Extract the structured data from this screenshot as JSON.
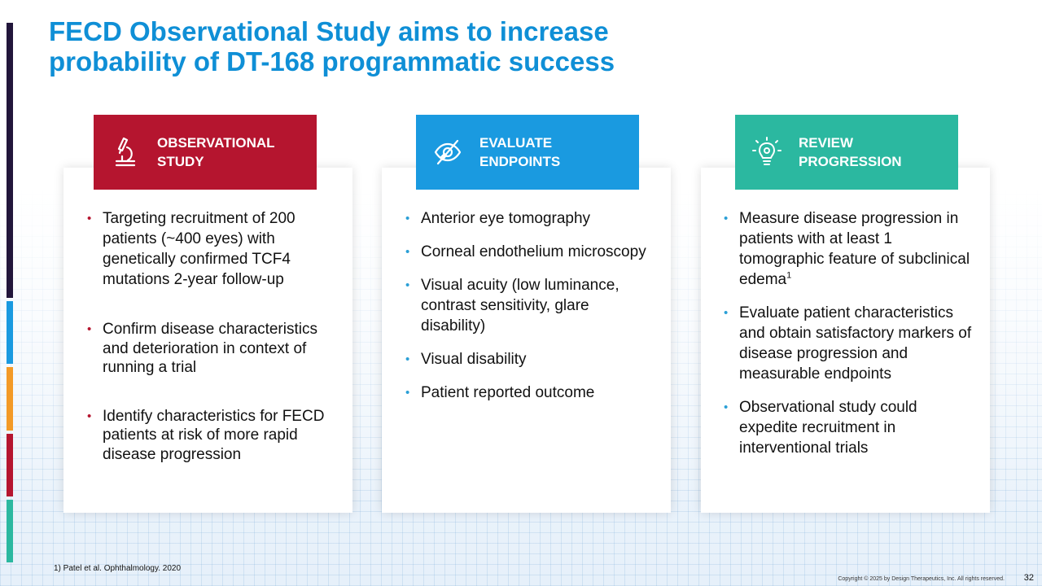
{
  "colors": {
    "title": "#0f8fd6",
    "card1_header": "#b5152f",
    "card2_header": "#1a9ae0",
    "card3_header": "#2bb8a0",
    "sidebar": [
      "#22163b",
      "#1a9ae0",
      "#f39a26",
      "#b5152f",
      "#2bb8a0"
    ]
  },
  "title": {
    "line1": "FECD Observational Study aims to increase",
    "line2": "probability of DT-168 programmatic success"
  },
  "cards": [
    {
      "icon": "microscope-icon",
      "heading": [
        "OBSERVATIONAL",
        "STUDY"
      ],
      "bullets": [
        "Targeting recruitment of 200 patients (~400 eyes) with genetically confirmed TCF4 mutations 2-year follow-up",
        "Confirm disease characteristics and deterioration in context of running a trial",
        "Identify characteristics for FECD patients at risk of more rapid disease progression"
      ]
    },
    {
      "icon": "eye-slash-icon",
      "heading": [
        "EVALUATE",
        "ENDPOINTS"
      ],
      "bullets": [
        "Anterior eye tomography",
        "Corneal endothelium microscopy",
        "Visual acuity (low luminance, contrast sensitivity, glare disability)",
        "Visual disability",
        "Patient reported outcome"
      ]
    },
    {
      "icon": "lightbulb-gear-icon",
      "heading": [
        "REVIEW",
        "PROGRESSION"
      ],
      "bullets": [
        "Measure disease progression in patients with at least 1 tomographic feature of subclinical edema",
        "Evaluate patient characteristics and obtain satisfactory markers of disease progression and measurable endpoints",
        "Observational study could expedite recruitment in interventional trials"
      ],
      "footnote_marker": "1"
    }
  ],
  "footnote": "1) Patel et al. Ophthalmology. 2020",
  "copyright": "Copyright © 2025 by Design Therapeutics, Inc. All rights reserved.",
  "page_number": "32"
}
